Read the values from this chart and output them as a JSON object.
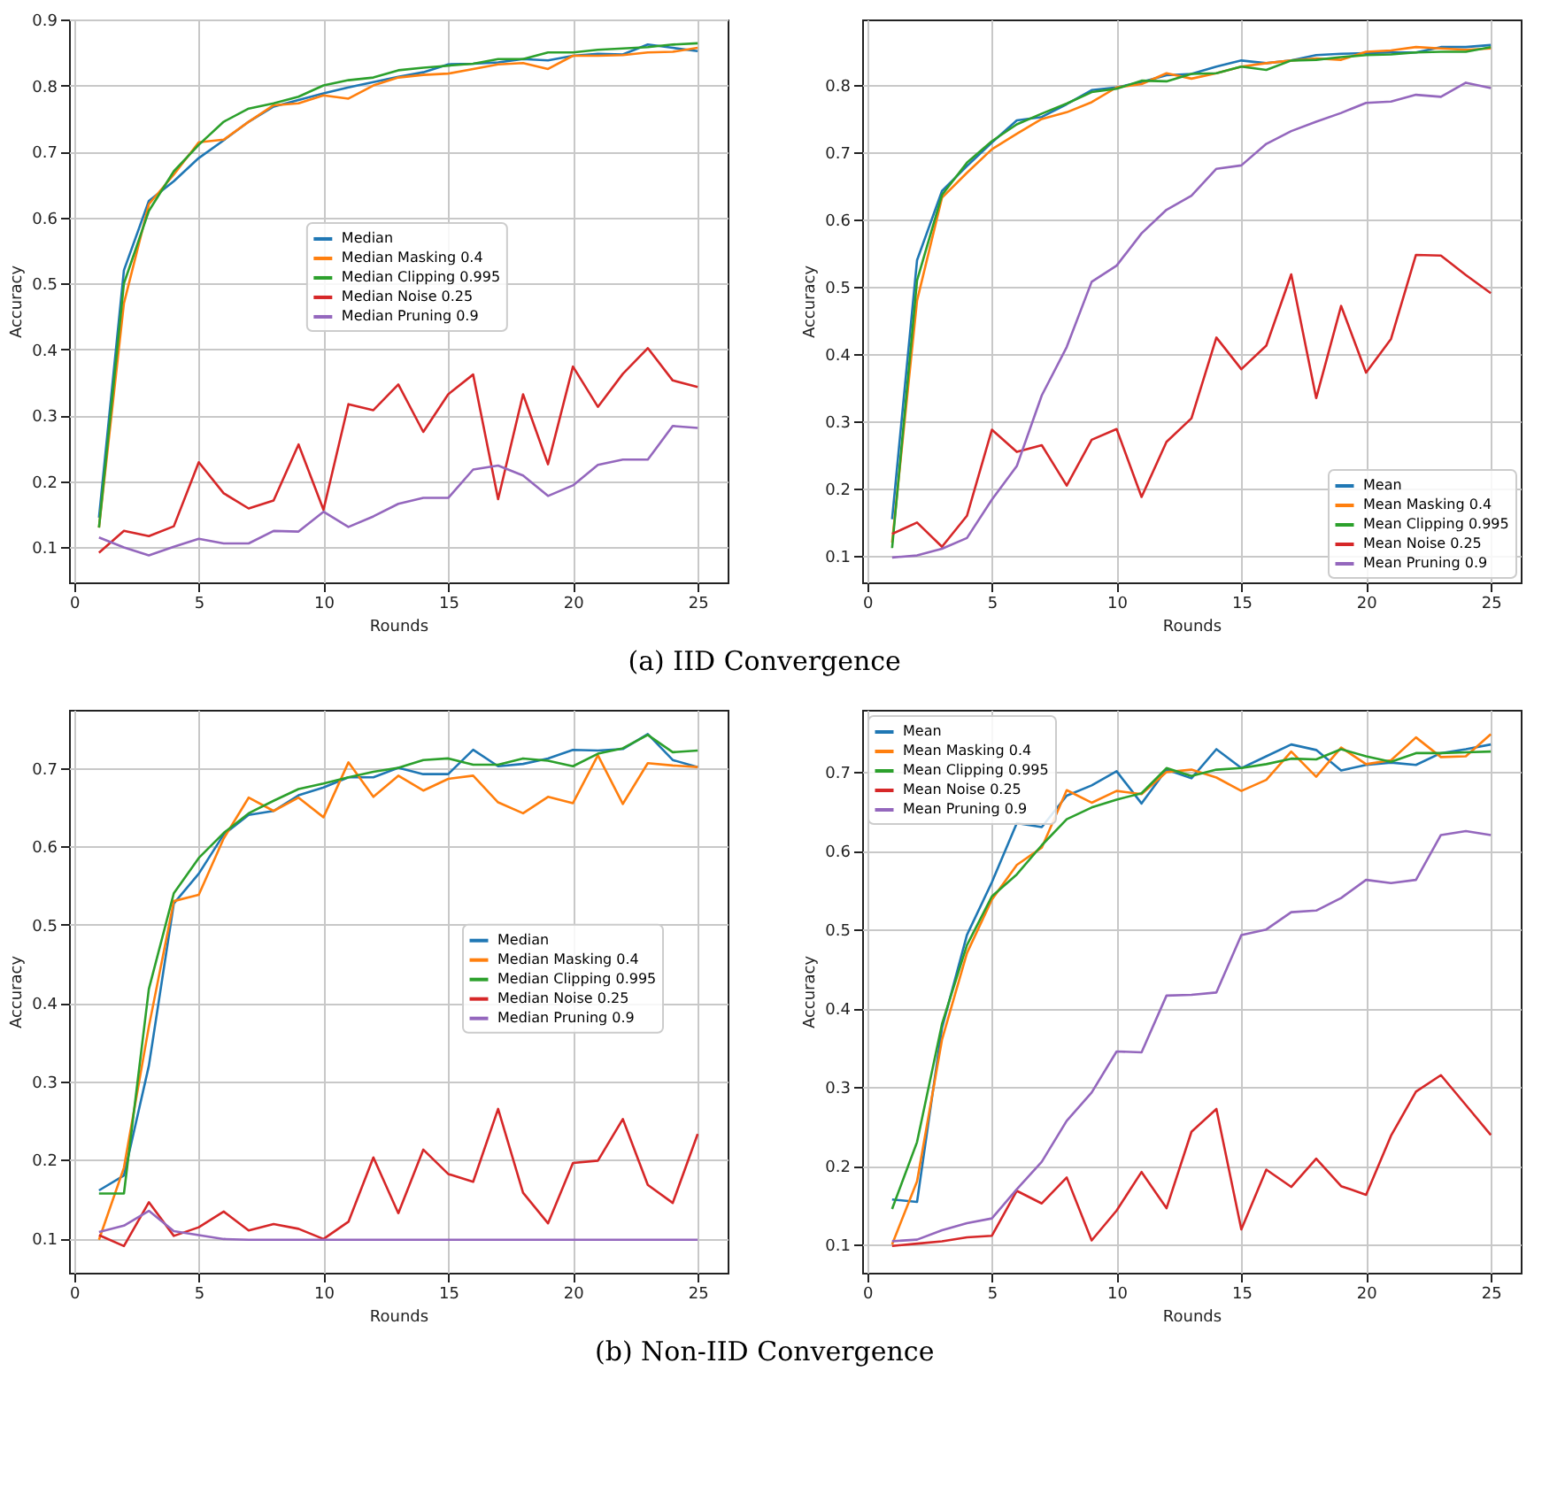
{
  "chart_data": [
    {
      "type": "line",
      "xlabel": "Rounds",
      "ylabel": "Accuracy",
      "xlim": [
        -0.2,
        26.2
      ],
      "ylim": [
        0.047,
        0.9
      ],
      "xticks": [
        0,
        5,
        10,
        15,
        20,
        25
      ],
      "yticks": [
        0.1,
        0.2,
        0.3,
        0.4,
        0.5,
        0.6,
        0.7,
        0.8,
        0.9
      ],
      "grid": true,
      "legend": "center",
      "annotations": [
        "(a) IID Convergence"
      ],
      "x": [
        1,
        2,
        3,
        4,
        5,
        6,
        7,
        8,
        9,
        10,
        11,
        12,
        13,
        14,
        15,
        16,
        17,
        18,
        19,
        20,
        21,
        22,
        23,
        24,
        25
      ],
      "series": [
        {
          "name": "Median",
          "color": "#1f77b4",
          "values": [
            0.145,
            0.52,
            0.625,
            0.655,
            0.69,
            0.717,
            0.745,
            0.768,
            0.778,
            0.788,
            0.797,
            0.805,
            0.813,
            0.82,
            0.832,
            0.833,
            0.835,
            0.84,
            0.838,
            0.845,
            0.848,
            0.847,
            0.862,
            0.857,
            0.852
          ]
        },
        {
          "name": "Median Masking 0.4",
          "color": "#ff7f0e",
          "values": [
            0.13,
            0.47,
            0.62,
            0.665,
            0.714,
            0.718,
            0.745,
            0.77,
            0.773,
            0.785,
            0.78,
            0.8,
            0.812,
            0.816,
            0.818,
            0.825,
            0.832,
            0.834,
            0.825,
            0.845,
            0.845,
            0.846,
            0.85,
            0.851,
            0.857
          ]
        },
        {
          "name": "Median Clipping 0.995",
          "color": "#2ca02c",
          "values": [
            0.13,
            0.5,
            0.61,
            0.67,
            0.71,
            0.745,
            0.765,
            0.773,
            0.783,
            0.8,
            0.808,
            0.812,
            0.823,
            0.827,
            0.83,
            0.833,
            0.84,
            0.84,
            0.85,
            0.85,
            0.854,
            0.856,
            0.858,
            0.862,
            0.864
          ]
        },
        {
          "name": "Median Noise 0.25",
          "color": "#d62728",
          "values": [
            0.092,
            0.125,
            0.117,
            0.132,
            0.229,
            0.182,
            0.159,
            0.171,
            0.256,
            0.157,
            0.317,
            0.308,
            0.347,
            0.275,
            0.332,
            0.362,
            0.173,
            0.332,
            0.226,
            0.374,
            0.313,
            0.363,
            0.402,
            0.353,
            0.343
          ]
        },
        {
          "name": "Median Pruning 0.9",
          "color": "#9467bd",
          "values": [
            0.115,
            0.1,
            0.088,
            0.101,
            0.113,
            0.106,
            0.106,
            0.125,
            0.124,
            0.154,
            0.131,
            0.147,
            0.166,
            0.175,
            0.175,
            0.218,
            0.224,
            0.209,
            0.178,
            0.194,
            0.225,
            0.233,
            0.233,
            0.284,
            0.281
          ]
        }
      ]
    },
    {
      "type": "line",
      "xlabel": "Rounds",
      "ylabel": "Accuracy",
      "xlim": [
        -0.2,
        26.2
      ],
      "ylim": [
        0.061,
        0.898
      ],
      "xticks": [
        0,
        5,
        10,
        15,
        20,
        25
      ],
      "yticks": [
        0.1,
        0.2,
        0.3,
        0.4,
        0.5,
        0.6,
        0.7,
        0.8
      ],
      "grid": true,
      "legend": "bottom right",
      "x": [
        1,
        2,
        3,
        4,
        5,
        6,
        7,
        8,
        9,
        10,
        11,
        12,
        13,
        14,
        15,
        16,
        17,
        18,
        19,
        20,
        21,
        22,
        23,
        24,
        25
      ],
      "series": [
        {
          "name": "Mean",
          "color": "#1f77b4",
          "values": [
            0.155,
            0.54,
            0.643,
            0.68,
            0.715,
            0.748,
            0.753,
            0.772,
            0.793,
            0.797,
            0.805,
            0.815,
            0.817,
            0.828,
            0.837,
            0.833,
            0.837,
            0.845,
            0.847,
            0.848,
            0.849,
            0.849,
            0.857,
            0.857,
            0.86
          ]
        },
        {
          "name": "Mean Masking 0.4",
          "color": "#ff7f0e",
          "values": [
            0.12,
            0.48,
            0.633,
            0.67,
            0.705,
            0.728,
            0.75,
            0.76,
            0.775,
            0.797,
            0.802,
            0.818,
            0.81,
            0.818,
            0.828,
            0.833,
            0.837,
            0.84,
            0.838,
            0.85,
            0.852,
            0.857,
            0.855,
            0.853,
            0.855
          ]
        },
        {
          "name": "Mean Clipping 0.995",
          "color": "#2ca02c",
          "values": [
            0.112,
            0.51,
            0.637,
            0.685,
            0.717,
            0.742,
            0.758,
            0.773,
            0.79,
            0.795,
            0.807,
            0.806,
            0.817,
            0.818,
            0.828,
            0.823,
            0.837,
            0.838,
            0.842,
            0.845,
            0.846,
            0.849,
            0.85,
            0.85,
            0.857
          ]
        },
        {
          "name": "Mean Noise 0.25",
          "color": "#d62728",
          "values": [
            0.133,
            0.15,
            0.114,
            0.16,
            0.288,
            0.255,
            0.265,
            0.205,
            0.273,
            0.289,
            0.188,
            0.27,
            0.305,
            0.425,
            0.378,
            0.413,
            0.519,
            0.335,
            0.472,
            0.373,
            0.423,
            0.548,
            0.547,
            0.518,
            0.491
          ]
        },
        {
          "name": "Mean Pruning 0.9",
          "color": "#9467bd",
          "values": [
            0.098,
            0.101,
            0.111,
            0.127,
            0.184,
            0.234,
            0.339,
            0.411,
            0.508,
            0.532,
            0.58,
            0.615,
            0.636,
            0.676,
            0.681,
            0.713,
            0.732,
            0.746,
            0.759,
            0.774,
            0.776,
            0.786,
            0.783,
            0.804,
            0.796
          ]
        }
      ]
    },
    {
      "type": "line",
      "xlabel": "Rounds",
      "ylabel": "Accuracy",
      "xlim": [
        -0.2,
        26.2
      ],
      "ylim": [
        0.056,
        0.774
      ],
      "xticks": [
        0,
        5,
        10,
        15,
        20,
        25
      ],
      "yticks": [
        0.1,
        0.2,
        0.3,
        0.4,
        0.5,
        0.6,
        0.7
      ],
      "grid": true,
      "legend": "right",
      "annotations": [
        "(b) Non-IID Convergence"
      ],
      "x": [
        1,
        2,
        3,
        4,
        5,
        6,
        7,
        8,
        9,
        10,
        11,
        12,
        13,
        14,
        15,
        16,
        17,
        18,
        19,
        20,
        21,
        22,
        23,
        24,
        25
      ],
      "series": [
        {
          "name": "Median",
          "color": "#1f77b4",
          "values": [
            0.161,
            0.18,
            0.32,
            0.527,
            0.565,
            0.615,
            0.64,
            0.645,
            0.665,
            0.675,
            0.688,
            0.688,
            0.7,
            0.692,
            0.692,
            0.723,
            0.702,
            0.705,
            0.712,
            0.723,
            0.722,
            0.724,
            0.743,
            0.71,
            0.701
          ]
        },
        {
          "name": "Median Masking 0.4",
          "color": "#ff7f0e",
          "values": [
            0.098,
            0.19,
            0.37,
            0.53,
            0.538,
            0.61,
            0.662,
            0.645,
            0.662,
            0.637,
            0.707,
            0.663,
            0.69,
            0.671,
            0.686,
            0.69,
            0.656,
            0.642,
            0.663,
            0.655,
            0.716,
            0.654,
            0.706,
            0.703,
            0.701
          ]
        },
        {
          "name": "Median Clipping 0.995",
          "color": "#2ca02c",
          "values": [
            0.157,
            0.157,
            0.418,
            0.54,
            0.585,
            0.617,
            0.642,
            0.658,
            0.673,
            0.68,
            0.688,
            0.695,
            0.7,
            0.71,
            0.712,
            0.704,
            0.704,
            0.712,
            0.709,
            0.702,
            0.718,
            0.725,
            0.742,
            0.72,
            0.722
          ]
        },
        {
          "name": "Median Noise 0.25",
          "color": "#d62728",
          "values": [
            0.104,
            0.09,
            0.146,
            0.103,
            0.114,
            0.134,
            0.11,
            0.118,
            0.112,
            0.099,
            0.121,
            0.203,
            0.132,
            0.213,
            0.182,
            0.172,
            0.265,
            0.158,
            0.119,
            0.196,
            0.199,
            0.252,
            0.168,
            0.145,
            0.233
          ]
        },
        {
          "name": "Median Pruning 0.9",
          "color": "#9467bd",
          "values": [
            0.108,
            0.116,
            0.135,
            0.109,
            0.104,
            0.099,
            0.098,
            0.098,
            0.098,
            0.098,
            0.098,
            0.098,
            0.098,
            0.098,
            0.098,
            0.098,
            0.098,
            0.098,
            0.098,
            0.098,
            0.098,
            0.098,
            0.098,
            0.098,
            0.098
          ]
        }
      ]
    },
    {
      "type": "line",
      "xlabel": "Rounds",
      "ylabel": "Accuracy",
      "xlim": [
        -0.2,
        26.2
      ],
      "ylim": [
        0.064,
        0.779
      ],
      "xticks": [
        0,
        5,
        10,
        15,
        20,
        25
      ],
      "yticks": [
        0.1,
        0.2,
        0.3,
        0.4,
        0.5,
        0.6,
        0.7
      ],
      "grid": true,
      "legend": "top left",
      "x": [
        1,
        2,
        3,
        4,
        5,
        6,
        7,
        8,
        9,
        10,
        11,
        12,
        13,
        14,
        15,
        16,
        17,
        18,
        19,
        20,
        21,
        22,
        23,
        24,
        25
      ],
      "series": [
        {
          "name": "Mean",
          "color": "#1f77b4",
          "values": [
            0.157,
            0.154,
            0.375,
            0.493,
            0.56,
            0.635,
            0.63,
            0.67,
            0.683,
            0.701,
            0.66,
            0.703,
            0.692,
            0.729,
            0.705,
            0.72,
            0.735,
            0.728,
            0.702,
            0.709,
            0.712,
            0.709,
            0.724,
            0.729,
            0.735
          ]
        },
        {
          "name": "Mean Masking 0.4",
          "color": "#ff7f0e",
          "values": [
            0.1,
            0.18,
            0.36,
            0.47,
            0.538,
            0.582,
            0.604,
            0.677,
            0.661,
            0.676,
            0.672,
            0.7,
            0.703,
            0.693,
            0.676,
            0.69,
            0.726,
            0.694,
            0.731,
            0.71,
            0.715,
            0.744,
            0.719,
            0.72,
            0.748
          ]
        },
        {
          "name": "Mean Clipping 0.995",
          "color": "#2ca02c",
          "values": [
            0.145,
            0.23,
            0.38,
            0.48,
            0.542,
            0.57,
            0.607,
            0.64,
            0.655,
            0.665,
            0.673,
            0.705,
            0.695,
            0.703,
            0.705,
            0.71,
            0.717,
            0.716,
            0.729,
            0.72,
            0.713,
            0.724,
            0.724,
            0.725,
            0.726
          ]
        },
        {
          "name": "Mean Noise 0.25",
          "color": "#d62728",
          "values": [
            0.098,
            0.101,
            0.104,
            0.109,
            0.111,
            0.168,
            0.152,
            0.185,
            0.105,
            0.143,
            0.192,
            0.146,
            0.243,
            0.272,
            0.119,
            0.195,
            0.173,
            0.209,
            0.174,
            0.163,
            0.238,
            0.294,
            0.315,
            0.277,
            0.239
          ]
        },
        {
          "name": "Mean Pruning 0.9",
          "color": "#9467bd",
          "values": [
            0.104,
            0.106,
            0.118,
            0.127,
            0.133,
            0.17,
            0.205,
            0.257,
            0.293,
            0.345,
            0.344,
            0.416,
            0.417,
            0.42,
            0.493,
            0.5,
            0.522,
            0.524,
            0.54,
            0.563,
            0.559,
            0.563,
            0.62,
            0.625,
            0.62
          ]
        }
      ]
    }
  ]
}
